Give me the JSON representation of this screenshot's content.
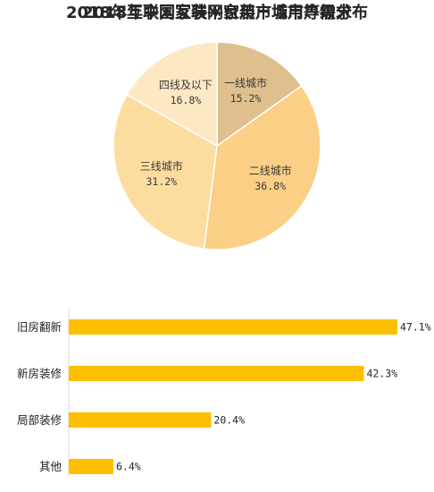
{
  "chart_data": [
    {
      "type": "pie",
      "title": "2018年互联网家装平台用户城市等级分布",
      "slices": [
        {
          "label": "一线城市",
          "value": 15.2,
          "value_label": "15.2%",
          "color": "#dfbf8e"
        },
        {
          "label": "二线城市",
          "value": 36.8,
          "value_label": "36.8%",
          "color": "#fbcf85"
        },
        {
          "label": "三线城市",
          "value": 31.2,
          "value_label": "31.2%",
          "color": "#fddd9f"
        },
        {
          "label": "四线及以下",
          "value": 16.8,
          "value_label": "16.8%",
          "color": "#fde8c4"
        }
      ]
    },
    {
      "type": "bar",
      "orientation": "horizontal",
      "title": "2018年中国互联网家装市场用户需求",
      "categories": [
        "旧房翻新",
        "新房装修",
        "局部装修",
        "其他"
      ],
      "values": [
        47.1,
        42.3,
        20.4,
        6.4
      ],
      "value_labels": [
        "47.1%",
        "42.3%",
        "20.4%",
        "6.4%"
      ],
      "bar_color": "#fdbf00",
      "xlim": [
        0,
        48
      ]
    }
  ]
}
